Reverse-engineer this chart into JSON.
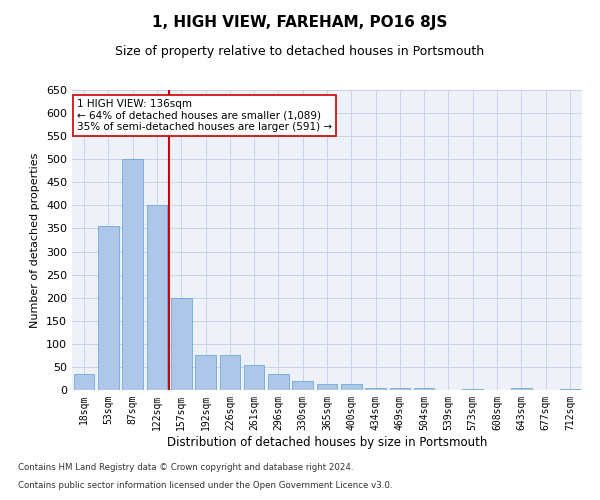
{
  "title": "1, HIGH VIEW, FAREHAM, PO16 8JS",
  "subtitle": "Size of property relative to detached houses in Portsmouth",
  "xlabel": "Distribution of detached houses by size in Portsmouth",
  "ylabel": "Number of detached properties",
  "categories": [
    "18sqm",
    "53sqm",
    "87sqm",
    "122sqm",
    "157sqm",
    "192sqm",
    "226sqm",
    "261sqm",
    "296sqm",
    "330sqm",
    "365sqm",
    "400sqm",
    "434sqm",
    "469sqm",
    "504sqm",
    "539sqm",
    "573sqm",
    "608sqm",
    "643sqm",
    "677sqm",
    "712sqm"
  ],
  "values": [
    35,
    355,
    500,
    400,
    200,
    75,
    75,
    55,
    35,
    20,
    12,
    12,
    5,
    5,
    5,
    1,
    2,
    1,
    5,
    1,
    2
  ],
  "bar_color": "#aec6e8",
  "bar_edge_color": "#5a9fd4",
  "vline_x": 3.5,
  "vline_color": "#cc0000",
  "annotation_text": "1 HIGH VIEW: 136sqm\n← 64% of detached houses are smaller (1,089)\n35% of semi-detached houses are larger (591) →",
  "annotation_box_color": "#ffffff",
  "annotation_box_edge": "#cc0000",
  "ylim": [
    0,
    650
  ],
  "yticks": [
    0,
    50,
    100,
    150,
    200,
    250,
    300,
    350,
    400,
    450,
    500,
    550,
    600,
    650
  ],
  "grid_color": "#c8d4e8",
  "bg_color": "#eef2f8",
  "footer1": "Contains HM Land Registry data © Crown copyright and database right 2024.",
  "footer2": "Contains public sector information licensed under the Open Government Licence v3.0.",
  "title_fontsize": 11,
  "subtitle_fontsize": 9
}
